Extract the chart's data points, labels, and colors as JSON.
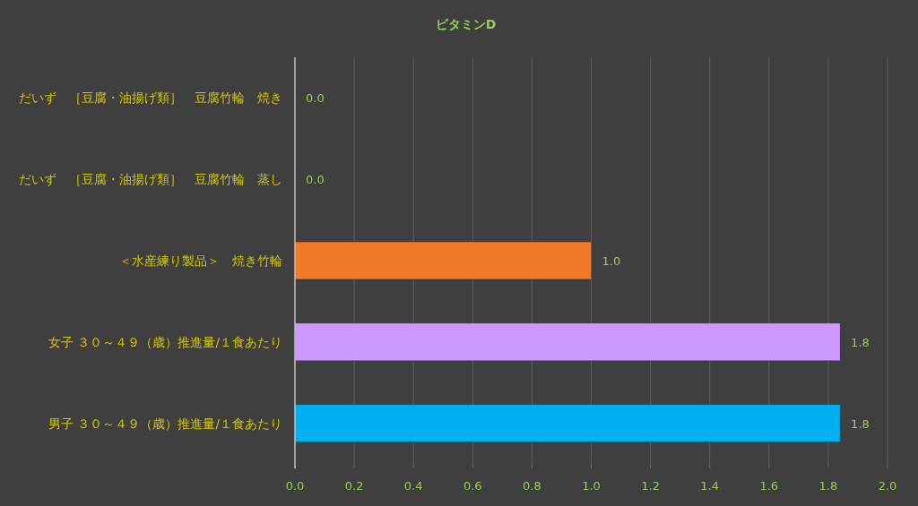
{
  "chart_data": {
    "type": "bar",
    "orientation": "horizontal",
    "title": "ビタミンD",
    "categories": [
      "だいず　［豆腐・油揚げ類］　豆腐竹輪　焼き",
      "だいず　［豆腐・油揚げ類］　豆腐竹輪　蒸し",
      "＜水産練り製品＞　焼き竹輪",
      "女子 ３０～４９（歳）推進量/１食あたり",
      "男子 ３０～４９（歳）推進量/１食あたり"
    ],
    "values": [
      0,
      0,
      1.0,
      1.84,
      1.84
    ],
    "colors": [
      null,
      null,
      "#f07a2a",
      "#cc99ff",
      "#00b0f0"
    ],
    "value_labels": [
      "0.0",
      "0.0",
      "1.0",
      "1.8",
      "1.8"
    ],
    "xlim": [
      0,
      2.0
    ],
    "xticks": [
      {
        "value": 0,
        "label": "0.0"
      },
      {
        "value": 0.2,
        "label": "0.2"
      },
      {
        "value": 0.4,
        "label": "0.4"
      },
      {
        "value": 0.6,
        "label": "0.6"
      },
      {
        "value": 0.8,
        "label": "0.8"
      },
      {
        "value": 1.0,
        "label": "1.0"
      },
      {
        "value": 1.2,
        "label": "1.2"
      },
      {
        "value": 1.4,
        "label": "1.4"
      },
      {
        "value": 1.6,
        "label": "1.6"
      },
      {
        "value": 1.8,
        "label": "1.8"
      },
      {
        "value": 2.0,
        "label": "2.0"
      }
    ],
    "grid": "x"
  }
}
